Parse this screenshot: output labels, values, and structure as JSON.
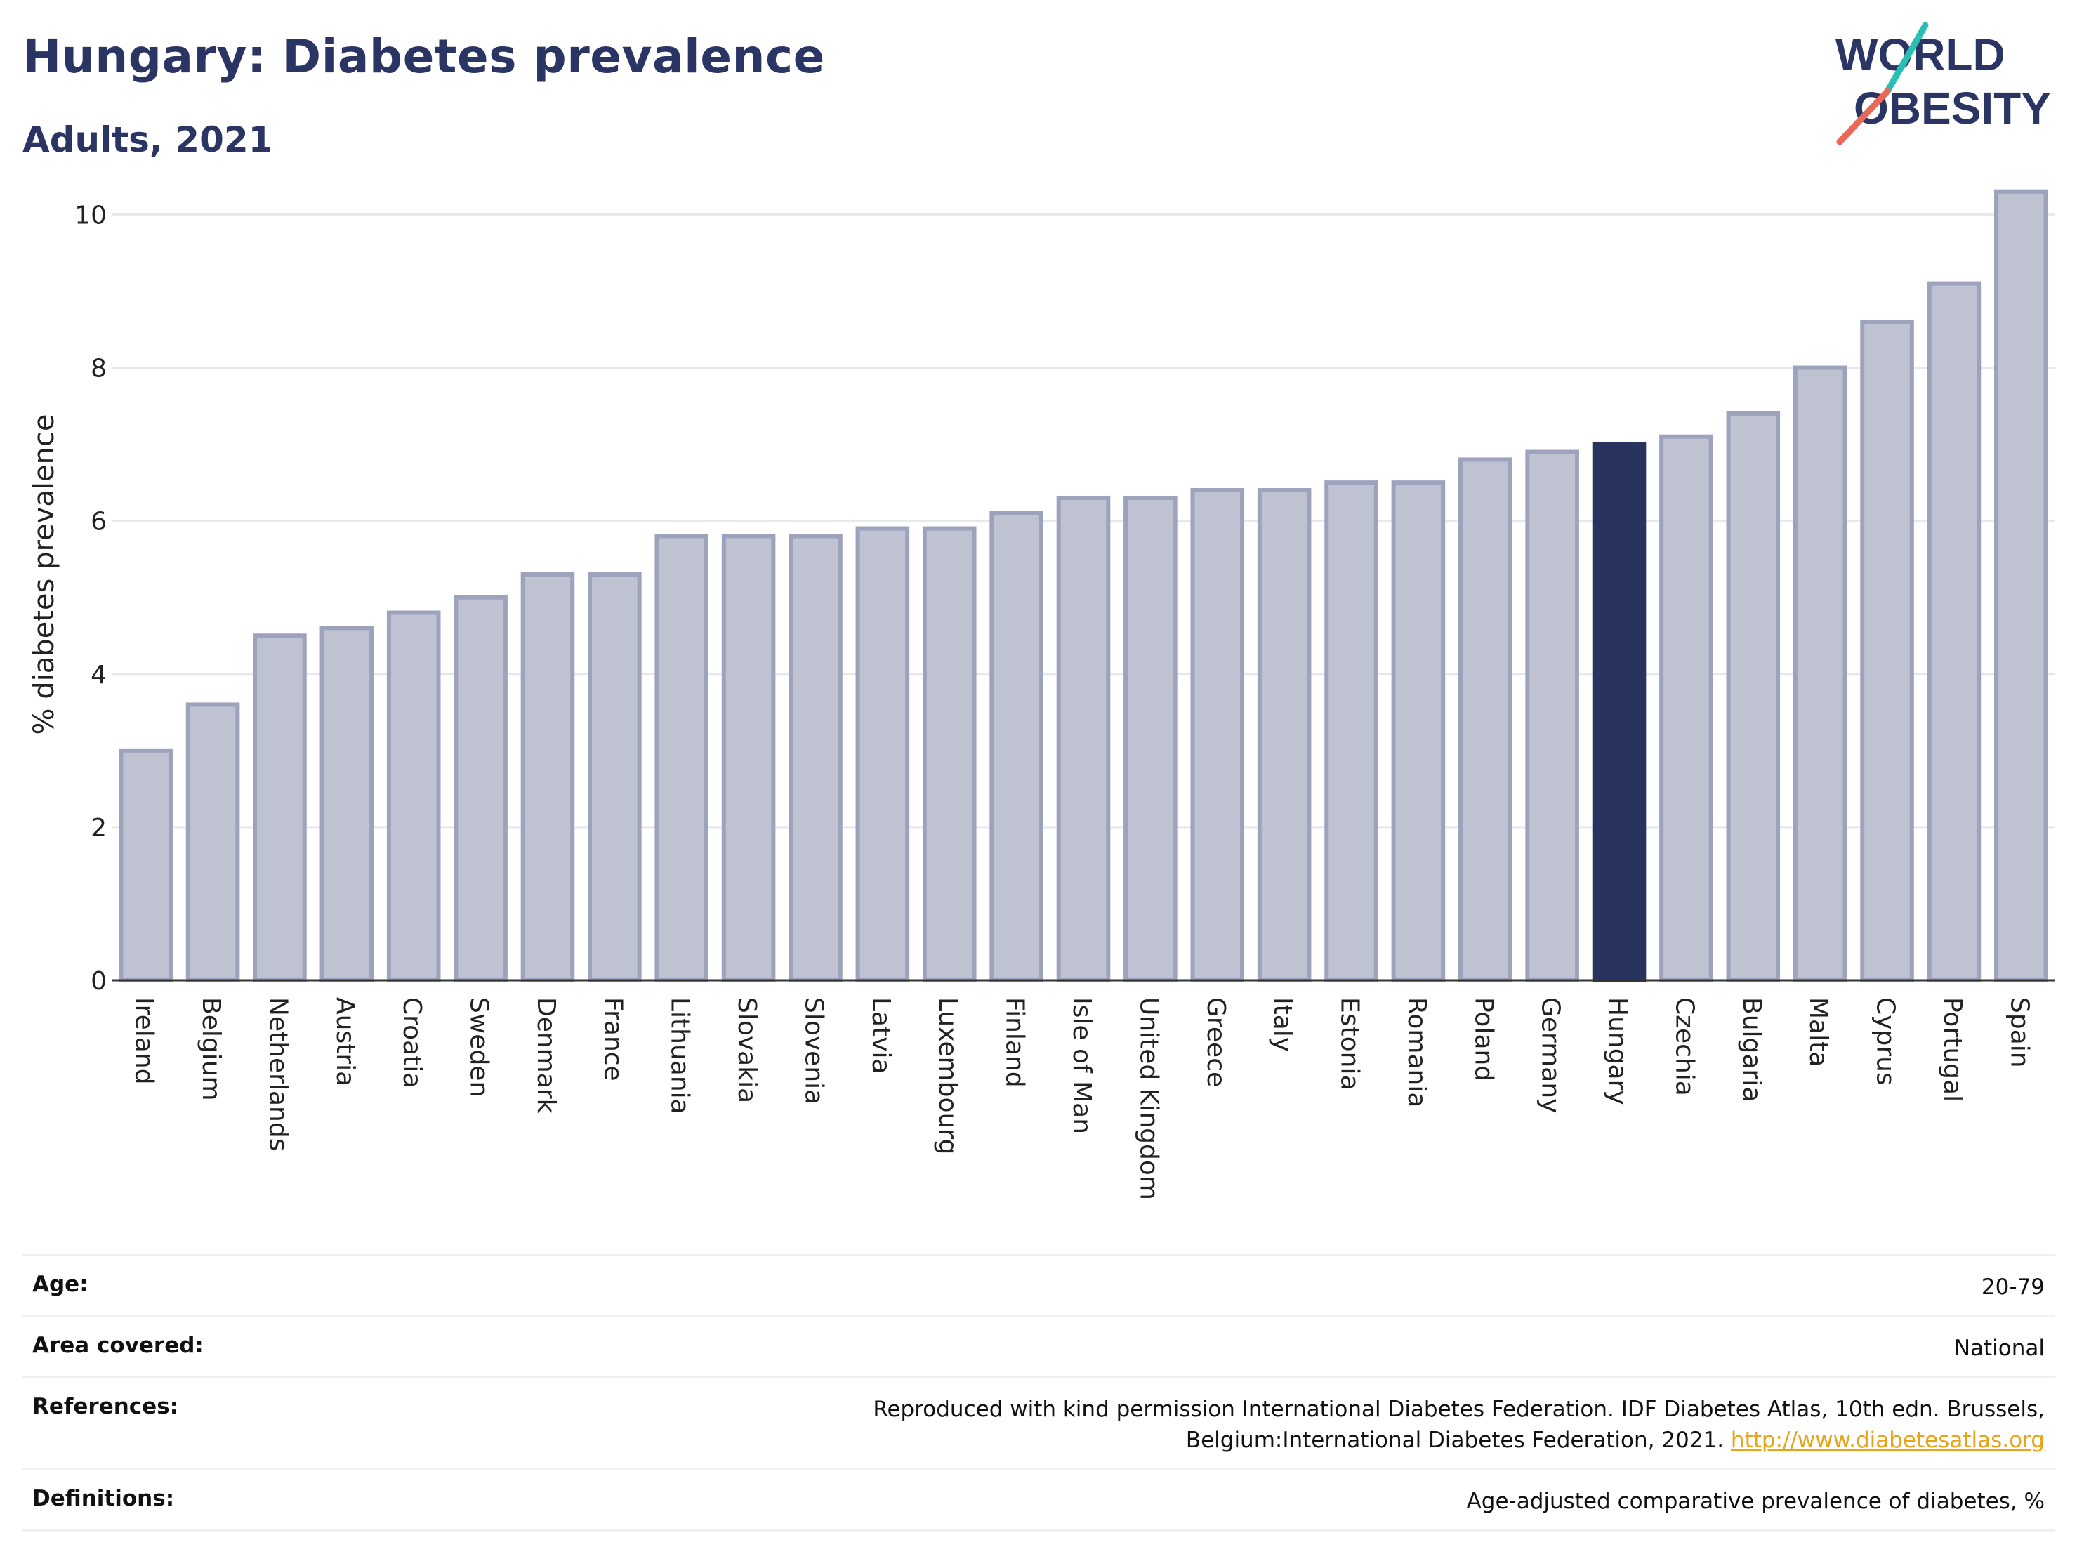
{
  "header": {
    "title": "Hungary: Diabetes prevalence",
    "subtitle": "Adults, 2021"
  },
  "logo": {
    "line1": "WORLD",
    "line2": "OBESITY",
    "accent_teal": "#2bbfb3",
    "accent_coral": "#e8695a",
    "text_color": "#2a3563"
  },
  "colors": {
    "bar_fill": "#bfc2d0",
    "bar_stroke": "#9ea3bd",
    "highlight": "#29335f",
    "grid": "#e6e8ee"
  },
  "chart_data": {
    "type": "bar",
    "ylabel": "% diabetes prevalence",
    "ylim": [
      0,
      10.6
    ],
    "yticks": [
      0,
      2,
      4,
      6,
      8,
      10
    ],
    "categories": [
      "Ireland",
      "Belgium",
      "Netherlands",
      "Austria",
      "Croatia",
      "Sweden",
      "Denmark",
      "France",
      "Lithuania",
      "Slovakia",
      "Slovenia",
      "Latvia",
      "Luxembourg",
      "Finland",
      "Isle of Man",
      "United Kingdom",
      "Greece",
      "Italy",
      "Estonia",
      "Romania",
      "Poland",
      "Germany",
      "Hungary",
      "Czechia",
      "Bulgaria",
      "Malta",
      "Cyprus",
      "Portugal",
      "Spain"
    ],
    "values": [
      3.0,
      3.6,
      4.5,
      4.6,
      4.8,
      5.0,
      5.3,
      5.3,
      5.8,
      5.8,
      5.8,
      5.9,
      5.9,
      6.1,
      6.3,
      6.3,
      6.4,
      6.4,
      6.5,
      6.5,
      6.8,
      6.9,
      7.0,
      7.1,
      7.4,
      8.0,
      8.6,
      9.1,
      10.3
    ],
    "highlight": "Hungary",
    "grid": true,
    "legend": "none"
  },
  "meta": {
    "age_label": "Age:",
    "age_value": "20-79",
    "area_label": "Area covered:",
    "area_value": "National",
    "references_label": "References:",
    "references_text": "Reproduced with kind permission International Diabetes Federation.  IDF Diabetes Atlas, 10th edn. Brussels, Belgium:International Diabetes Federation, 2021.",
    "references_link": "http://www.diabetesatlas.org",
    "definitions_label": "Definitions:",
    "definitions_value": "Age-adjusted comparative prevalence of diabetes, %"
  }
}
